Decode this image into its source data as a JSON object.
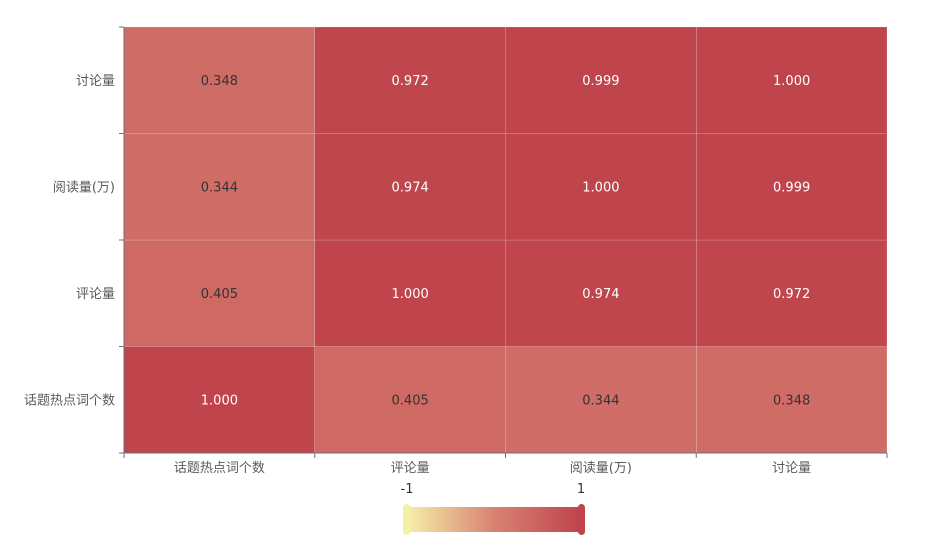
{
  "chart_data": {
    "type": "heatmap",
    "x_categories": [
      "话题热点词个数",
      "评论量",
      "阅读量(万)",
      "讨论量"
    ],
    "y_categories": [
      "话题热点词个数",
      "评论量",
      "阅读量(万)",
      "讨论量"
    ],
    "matrix": [
      [
        1.0,
        0.405,
        0.344,
        0.348
      ],
      [
        0.405,
        1.0,
        0.974,
        0.972
      ],
      [
        0.344,
        0.974,
        1.0,
        0.999
      ],
      [
        0.348,
        0.972,
        0.999,
        1.0
      ]
    ],
    "value_format": "0.000",
    "visual_map": {
      "min": -1,
      "max": 1,
      "min_label": "-1",
      "max_label": "1",
      "colors": [
        "#f6efa6",
        "#d88273",
        "#bf444c"
      ]
    },
    "grid": false
  }
}
